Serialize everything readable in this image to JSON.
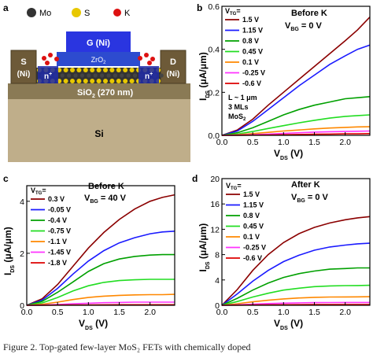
{
  "panel_a": {
    "panel_label": "a",
    "legend": [
      {
        "symbol": "Mo",
        "color": "#333333"
      },
      {
        "symbol": "S",
        "color": "#e8c800"
      },
      {
        "symbol": "K",
        "color": "#dd1111"
      }
    ],
    "gate_label": "G (Ni)",
    "oxide_label": "ZrO",
    "oxide_sub": "2",
    "source_label": "S",
    "source_metal": "(Ni)",
    "drain_label": "D",
    "drain_metal": "(Ni)",
    "doped_region": "n",
    "doped_sup": "+",
    "substrate_oxide": "SiO",
    "substrate_oxide_sub": "2",
    "substrate_oxide_thickness": " (270 nm)",
    "substrate": "Si"
  },
  "chart_data": [
    {
      "panel_label": "b",
      "type": "line",
      "title": "Before K",
      "bias_label": "V",
      "bias_sub": "BG",
      "bias_value": "= 0 V",
      "legend_title": "V",
      "legend_title_sub": "TG",
      "notes": [
        "L ~ 1 μm",
        "3 MLs"
      ],
      "material": "MoS",
      "material_sub": "2",
      "xlabel": "V",
      "xlabel_sub": "DS",
      "xlabel_unit": " (V)",
      "ylabel": "I",
      "ylabel_sub": "DS",
      "ylabel_unit": " (μA/μm)",
      "xlim": [
        0,
        2.4
      ],
      "ylim": [
        0,
        0.6
      ],
      "xticks": [
        "0.0",
        "0.5",
        "1.0",
        "1.5",
        "2.0"
      ],
      "yticks": [
        "0.0",
        "0.2",
        "0.4",
        "0.6"
      ],
      "x": [
        0,
        0.25,
        0.5,
        0.75,
        1.0,
        1.25,
        1.5,
        1.75,
        2.0,
        2.2,
        2.4
      ],
      "series": [
        {
          "name": "1.5 V",
          "color": "#8b0000",
          "values": [
            0,
            0.025,
            0.075,
            0.14,
            0.2,
            0.26,
            0.32,
            0.38,
            0.44,
            0.49,
            0.55
          ]
        },
        {
          "name": "1.15 V",
          "color": "#1a1aff",
          "values": [
            0,
            0.02,
            0.065,
            0.12,
            0.175,
            0.23,
            0.28,
            0.33,
            0.37,
            0.4,
            0.42
          ]
        },
        {
          "name": "0.8 V",
          "color": "#00a000",
          "values": [
            0,
            0.012,
            0.035,
            0.065,
            0.095,
            0.12,
            0.14,
            0.155,
            0.17,
            0.175,
            0.18
          ]
        },
        {
          "name": "0.45 V",
          "color": "#22dd22",
          "values": [
            0,
            0.006,
            0.018,
            0.032,
            0.045,
            0.058,
            0.07,
            0.08,
            0.088,
            0.092,
            0.095
          ]
        },
        {
          "name": "0.1 V",
          "color": "#ff8800",
          "values": [
            0,
            0.003,
            0.008,
            0.014,
            0.02,
            0.025,
            0.03,
            0.034,
            0.037,
            0.039,
            0.04
          ]
        },
        {
          "name": "-0.25 V",
          "color": "#ff33ff",
          "values": [
            0,
            0.001,
            0.003,
            0.006,
            0.009,
            0.012,
            0.015,
            0.017,
            0.018,
            0.019,
            0.02
          ]
        },
        {
          "name": "-0.6 V",
          "color": "#dd0000",
          "values": [
            0,
            0.0005,
            0.001,
            0.002,
            0.003,
            0.004,
            0.005,
            0.006,
            0.007,
            0.007,
            0.008
          ]
        }
      ]
    },
    {
      "panel_label": "c",
      "type": "line",
      "title": "Before K",
      "bias_label": "V",
      "bias_sub": "BG",
      "bias_value": "= 40 V",
      "legend_title": "V",
      "legend_title_sub": "TG",
      "xlabel": "V",
      "xlabel_sub": "DS",
      "xlabel_unit": " (V)",
      "ylabel": "I",
      "ylabel_sub": "DS",
      "ylabel_unit": " (μA/μm)",
      "xlim": [
        0,
        2.4
      ],
      "ylim": [
        0,
        4.6
      ],
      "xticks": [
        "0.0",
        "0.5",
        "1.0",
        "1.5",
        "2.0"
      ],
      "yticks": [
        "0",
        "2",
        "4"
      ],
      "x": [
        0,
        0.25,
        0.5,
        0.75,
        1.0,
        1.25,
        1.5,
        1.75,
        2.0,
        2.2,
        2.4
      ],
      "series": [
        {
          "name": "0.3 V",
          "color": "#8b0000",
          "values": [
            0,
            0.25,
            0.8,
            1.5,
            2.2,
            2.8,
            3.3,
            3.7,
            4.0,
            4.15,
            4.25
          ]
        },
        {
          "name": "-0.05 V",
          "color": "#1a1aff",
          "values": [
            0,
            0.2,
            0.65,
            1.2,
            1.7,
            2.1,
            2.4,
            2.6,
            2.75,
            2.82,
            2.85
          ]
        },
        {
          "name": "-0.4 V",
          "color": "#00a000",
          "values": [
            0,
            0.15,
            0.5,
            0.9,
            1.3,
            1.6,
            1.78,
            1.88,
            1.93,
            1.95,
            1.95
          ]
        },
        {
          "name": "-0.75 V",
          "color": "#22dd22",
          "values": [
            0,
            0.09,
            0.3,
            0.55,
            0.75,
            0.88,
            0.95,
            0.98,
            1.0,
            1.0,
            1.0
          ]
        },
        {
          "name": "-1.1 V",
          "color": "#ff8800",
          "values": [
            0,
            0.04,
            0.12,
            0.22,
            0.3,
            0.35,
            0.38,
            0.4,
            0.41,
            0.41,
            0.42
          ]
        },
        {
          "name": "-1.45 V",
          "color": "#ff33ff",
          "values": [
            0,
            0.01,
            0.03,
            0.06,
            0.08,
            0.1,
            0.11,
            0.12,
            0.12,
            0.12,
            0.12
          ]
        },
        {
          "name": "-1.8 V",
          "color": "#dd0000",
          "values": [
            0,
            0.003,
            0.008,
            0.012,
            0.016,
            0.018,
            0.02,
            0.02,
            0.02,
            0.02,
            0.02
          ]
        }
      ]
    },
    {
      "panel_label": "d",
      "type": "line",
      "title": "After K",
      "bias_label": "V",
      "bias_sub": "BG",
      "bias_value": "= 0 V",
      "legend_title": "V",
      "legend_title_sub": "TG",
      "xlabel": "V",
      "xlabel_sub": "DS",
      "xlabel_unit": " (V)",
      "ylabel": "I",
      "ylabel_sub": "DS",
      "ylabel_unit": " (μA/μm)",
      "xlim": [
        0,
        2.4
      ],
      "ylim": [
        0,
        20
      ],
      "xticks": [
        "0.0",
        "0.5",
        "1.0",
        "1.5",
        "2.0"
      ],
      "yticks": [
        "0",
        "4",
        "8",
        "12",
        "16",
        "20"
      ],
      "x": [
        0,
        0.25,
        0.5,
        0.75,
        1.0,
        1.25,
        1.5,
        1.75,
        2.0,
        2.2,
        2.4
      ],
      "series": [
        {
          "name": "1.5 V",
          "color": "#8b0000",
          "values": [
            0,
            2.5,
            5.5,
            8.0,
            9.9,
            11.3,
            12.3,
            13.0,
            13.5,
            13.8,
            14.0
          ]
        },
        {
          "name": "1.15 V",
          "color": "#1a1aff",
          "values": [
            0,
            1.8,
            3.8,
            5.5,
            6.9,
            7.9,
            8.7,
            9.2,
            9.5,
            9.7,
            9.8
          ]
        },
        {
          "name": "0.8 V",
          "color": "#00a000",
          "values": [
            0,
            1.1,
            2.4,
            3.5,
            4.4,
            5.0,
            5.4,
            5.7,
            5.8,
            5.9,
            5.9
          ]
        },
        {
          "name": "0.45 V",
          "color": "#22dd22",
          "values": [
            0,
            0.6,
            1.3,
            1.9,
            2.4,
            2.7,
            2.95,
            3.05,
            3.1,
            3.12,
            3.15
          ]
        },
        {
          "name": "0.1 V",
          "color": "#ff8800",
          "values": [
            0,
            0.25,
            0.55,
            0.8,
            1.0,
            1.15,
            1.25,
            1.3,
            1.32,
            1.33,
            1.35
          ]
        },
        {
          "name": "-0.25 V",
          "color": "#ff33ff",
          "values": [
            0,
            0.08,
            0.18,
            0.27,
            0.34,
            0.39,
            0.42,
            0.44,
            0.45,
            0.45,
            0.45
          ]
        },
        {
          "name": "-0.6 V",
          "color": "#dd0000",
          "values": [
            0,
            0.02,
            0.05,
            0.07,
            0.09,
            0.1,
            0.11,
            0.11,
            0.12,
            0.12,
            0.12
          ]
        }
      ]
    }
  ],
  "caption": "Figure 2. Top-gated few-layer MoS₂ FETs with chemically doped"
}
